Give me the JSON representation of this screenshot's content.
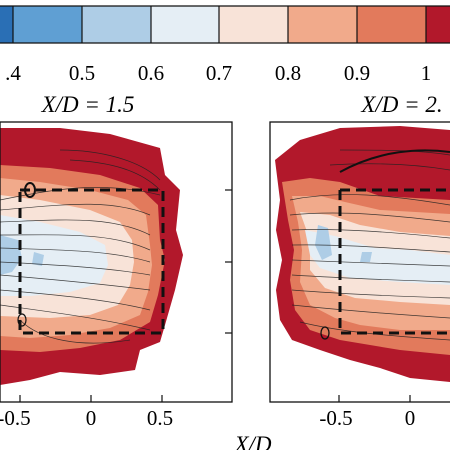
{
  "colorbar": {
    "colors": [
      "#2a6fb5",
      "#5f9fd3",
      "#aecde6",
      "#e5eef5",
      "#f8e3d8",
      "#f1aa8b",
      "#e27a5c",
      "#b2182b"
    ],
    "tick_labels": [
      ".4",
      "0.5",
      "0.6",
      "0.7",
      "0.8",
      "0.9",
      "1"
    ]
  },
  "panels": [
    {
      "title": "X/D = 1.5",
      "x_tick_labels": [
        "-0.5",
        "0",
        "0.5"
      ],
      "box": "dashed"
    },
    {
      "title": "X/D = 2.",
      "x_tick_labels": [
        "-0.5",
        "0"
      ],
      "box": "dashed"
    }
  ],
  "x_axis_label": "X/D"
}
